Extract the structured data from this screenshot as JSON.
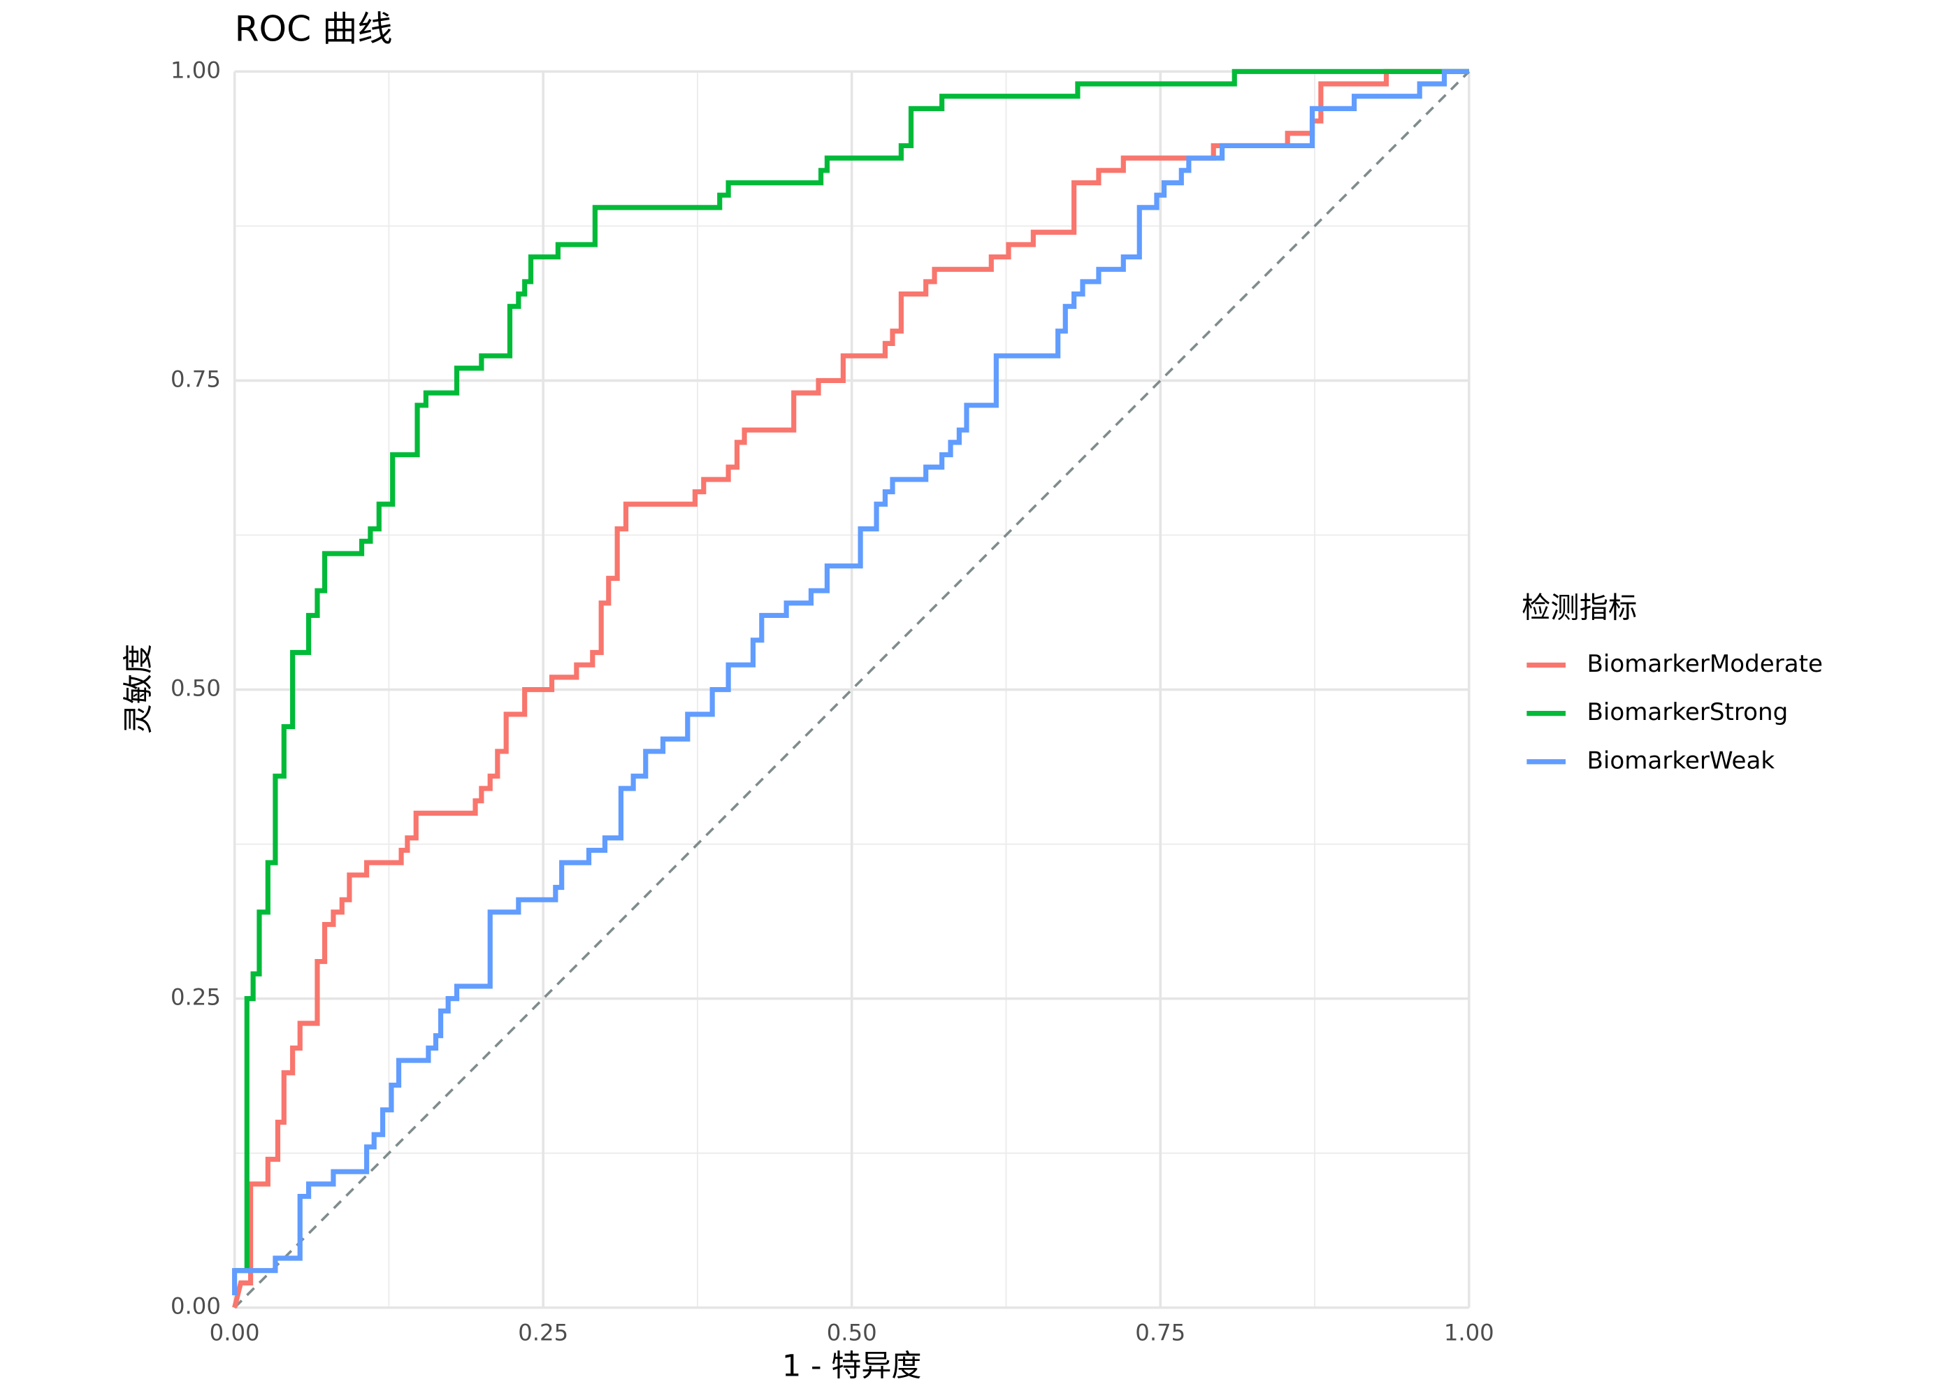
{
  "chart_data": {
    "type": "line",
    "step": true,
    "title": "ROC 曲线",
    "xlabel": "1 - 特异度",
    "ylabel": "灵敏度",
    "legend_title": "检测指标",
    "legend": "right",
    "grid": true,
    "diagonal": true,
    "xlim": [
      0,
      1
    ],
    "ylim": [
      0,
      1
    ],
    "xticks": [
      {
        "value": 0,
        "label": "0.00"
      },
      {
        "value": 0.25,
        "label": "0.25"
      },
      {
        "value": 0.5,
        "label": "0.50"
      },
      {
        "value": 0.75,
        "label": "0.75"
      },
      {
        "value": 1,
        "label": "1.00"
      }
    ],
    "yticks": [
      {
        "value": 0,
        "label": "0.00"
      },
      {
        "value": 0.25,
        "label": "0.25"
      },
      {
        "value": 0.5,
        "label": "0.50"
      },
      {
        "value": 0.75,
        "label": "0.75"
      },
      {
        "value": 1,
        "label": "1.00"
      }
    ],
    "series": [
      {
        "name": "BiomarkerModerate",
        "color": "#F8766D",
        "x": [
          0,
          0.005,
          0.013,
          0.013,
          0.027,
          0.027,
          0.035,
          0.035,
          0.04,
          0.04,
          0.047,
          0.047,
          0.053,
          0.053,
          0.067,
          0.067,
          0.073,
          0.073,
          0.08,
          0.08,
          0.087,
          0.087,
          0.093,
          0.093,
          0.107,
          0.107,
          0.135,
          0.135,
          0.14,
          0.14,
          0.147,
          0.147,
          0.195,
          0.195,
          0.2,
          0.2,
          0.207,
          0.207,
          0.213,
          0.213,
          0.22,
          0.22,
          0.235,
          0.235,
          0.257,
          0.257,
          0.277,
          0.277,
          0.29,
          0.29,
          0.297,
          0.297,
          0.303,
          0.303,
          0.31,
          0.31,
          0.317,
          0.317,
          0.373,
          0.373,
          0.38,
          0.38,
          0.4,
          0.4,
          0.407,
          0.407,
          0.413,
          0.413,
          0.453,
          0.453,
          0.473,
          0.473,
          0.493,
          0.493,
          0.527,
          0.527,
          0.533,
          0.533,
          0.54,
          0.54,
          0.56,
          0.56,
          0.567,
          0.567,
          0.613,
          0.613,
          0.627,
          0.627,
          0.647,
          0.647,
          0.68,
          0.68,
          0.7,
          0.7,
          0.72,
          0.72,
          0.793,
          0.793,
          0.853,
          0.853,
          0.873,
          0.873,
          0.88,
          0.88,
          0.933,
          0.933,
          1
        ],
        "values": [
          0,
          0.02,
          0.02,
          0.1,
          0.1,
          0.12,
          0.12,
          0.15,
          0.15,
          0.19,
          0.19,
          0.21,
          0.21,
          0.23,
          0.23,
          0.28,
          0.28,
          0.31,
          0.31,
          0.32,
          0.32,
          0.33,
          0.33,
          0.35,
          0.35,
          0.36,
          0.36,
          0.37,
          0.37,
          0.38,
          0.38,
          0.4,
          0.4,
          0.41,
          0.41,
          0.42,
          0.42,
          0.43,
          0.43,
          0.45,
          0.45,
          0.48,
          0.48,
          0.5,
          0.5,
          0.51,
          0.51,
          0.52,
          0.52,
          0.53,
          0.53,
          0.57,
          0.57,
          0.59,
          0.59,
          0.63,
          0.63,
          0.65,
          0.65,
          0.66,
          0.66,
          0.67,
          0.67,
          0.68,
          0.68,
          0.7,
          0.7,
          0.71,
          0.71,
          0.74,
          0.74,
          0.75,
          0.75,
          0.77,
          0.77,
          0.78,
          0.78,
          0.79,
          0.79,
          0.82,
          0.82,
          0.83,
          0.83,
          0.84,
          0.84,
          0.85,
          0.85,
          0.86,
          0.86,
          0.87,
          0.87,
          0.91,
          0.91,
          0.92,
          0.92,
          0.93,
          0.93,
          0.94,
          0.94,
          0.95,
          0.95,
          0.96,
          0.96,
          0.99,
          0.99,
          1,
          1
        ]
      },
      {
        "name": "BiomarkerStrong",
        "color": "#00BA38",
        "x": [
          0,
          0.01,
          0.01,
          0.015,
          0.015,
          0.02,
          0.02,
          0.027,
          0.027,
          0.033,
          0.033,
          0.04,
          0.04,
          0.047,
          0.047,
          0.06,
          0.06,
          0.067,
          0.067,
          0.073,
          0.073,
          0.103,
          0.103,
          0.11,
          0.11,
          0.117,
          0.117,
          0.128,
          0.128,
          0.148,
          0.148,
          0.155,
          0.155,
          0.18,
          0.18,
          0.2,
          0.2,
          0.223,
          0.223,
          0.23,
          0.23,
          0.235,
          0.235,
          0.24,
          0.24,
          0.262,
          0.262,
          0.292,
          0.292,
          0.393,
          0.393,
          0.4,
          0.4,
          0.475,
          0.475,
          0.48,
          0.48,
          0.54,
          0.54,
          0.548,
          0.548,
          0.573,
          0.573,
          0.683,
          0.683,
          0.81,
          0.81,
          1
        ],
        "values": [
          0.03,
          0.03,
          0.25,
          0.25,
          0.27,
          0.27,
          0.32,
          0.32,
          0.36,
          0.36,
          0.43,
          0.43,
          0.47,
          0.47,
          0.53,
          0.53,
          0.56,
          0.56,
          0.58,
          0.58,
          0.61,
          0.61,
          0.62,
          0.62,
          0.63,
          0.63,
          0.65,
          0.65,
          0.69,
          0.69,
          0.73,
          0.73,
          0.74,
          0.74,
          0.76,
          0.76,
          0.77,
          0.77,
          0.81,
          0.81,
          0.82,
          0.82,
          0.83,
          0.83,
          0.85,
          0.85,
          0.86,
          0.86,
          0.89,
          0.89,
          0.9,
          0.9,
          0.91,
          0.91,
          0.92,
          0.92,
          0.93,
          0.93,
          0.94,
          0.94,
          0.97,
          0.97,
          0.98,
          0.98,
          0.99,
          0.99,
          1,
          1
        ]
      },
      {
        "name": "BiomarkerWeak",
        "color": "#619CFF",
        "x": [
          0,
          0,
          0.033,
          0.033,
          0.053,
          0.053,
          0.06,
          0.06,
          0.08,
          0.08,
          0.107,
          0.107,
          0.113,
          0.113,
          0.12,
          0.12,
          0.127,
          0.127,
          0.133,
          0.133,
          0.157,
          0.157,
          0.163,
          0.163,
          0.167,
          0.167,
          0.173,
          0.173,
          0.18,
          0.18,
          0.207,
          0.207,
          0.23,
          0.23,
          0.26,
          0.26,
          0.265,
          0.265,
          0.287,
          0.287,
          0.3,
          0.3,
          0.313,
          0.313,
          0.323,
          0.323,
          0.333,
          0.333,
          0.347,
          0.347,
          0.367,
          0.367,
          0.387,
          0.387,
          0.4,
          0.4,
          0.42,
          0.42,
          0.427,
          0.427,
          0.447,
          0.447,
          0.467,
          0.467,
          0.48,
          0.48,
          0.507,
          0.507,
          0.52,
          0.52,
          0.527,
          0.527,
          0.533,
          0.533,
          0.56,
          0.56,
          0.573,
          0.573,
          0.58,
          0.58,
          0.587,
          0.587,
          0.593,
          0.593,
          0.617,
          0.617,
          0.667,
          0.667,
          0.673,
          0.673,
          0.68,
          0.68,
          0.687,
          0.687,
          0.7,
          0.7,
          0.72,
          0.72,
          0.733,
          0.733,
          0.747,
          0.747,
          0.753,
          0.753,
          0.767,
          0.767,
          0.773,
          0.773,
          0.8,
          0.8,
          0.873,
          0.873,
          0.907,
          0.907,
          0.96,
          0.96,
          0.98,
          0.98,
          1
        ],
        "values": [
          0.01,
          0.03,
          0.03,
          0.04,
          0.04,
          0.09,
          0.09,
          0.1,
          0.1,
          0.11,
          0.11,
          0.13,
          0.13,
          0.14,
          0.14,
          0.16,
          0.16,
          0.18,
          0.18,
          0.2,
          0.2,
          0.21,
          0.21,
          0.22,
          0.22,
          0.24,
          0.24,
          0.25,
          0.25,
          0.26,
          0.26,
          0.32,
          0.32,
          0.33,
          0.33,
          0.34,
          0.34,
          0.36,
          0.36,
          0.37,
          0.37,
          0.38,
          0.38,
          0.42,
          0.42,
          0.43,
          0.43,
          0.45,
          0.45,
          0.46,
          0.46,
          0.48,
          0.48,
          0.5,
          0.5,
          0.52,
          0.52,
          0.54,
          0.54,
          0.56,
          0.56,
          0.57,
          0.57,
          0.58,
          0.58,
          0.6,
          0.6,
          0.63,
          0.63,
          0.65,
          0.65,
          0.66,
          0.66,
          0.67,
          0.67,
          0.68,
          0.68,
          0.69,
          0.69,
          0.7,
          0.7,
          0.71,
          0.71,
          0.73,
          0.73,
          0.77,
          0.77,
          0.79,
          0.79,
          0.81,
          0.81,
          0.82,
          0.82,
          0.83,
          0.83,
          0.84,
          0.84,
          0.85,
          0.85,
          0.89,
          0.89,
          0.9,
          0.9,
          0.91,
          0.91,
          0.92,
          0.92,
          0.93,
          0.93,
          0.94,
          0.94,
          0.97,
          0.97,
          0.98,
          0.98,
          0.99,
          0.99,
          1,
          1
        ]
      }
    ]
  }
}
